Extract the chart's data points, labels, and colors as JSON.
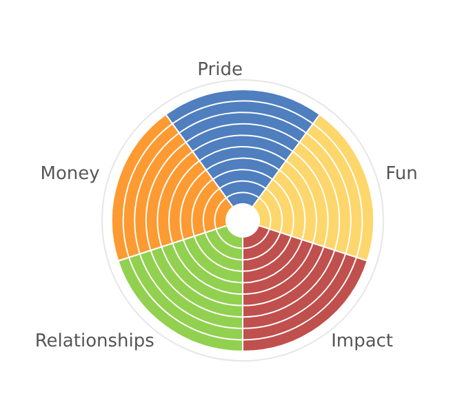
{
  "chart_data": {
    "type": "donut",
    "categories": [
      "Pride",
      "Fun",
      "Impact",
      "Relationships",
      "Money"
    ],
    "values": [
      20,
      20,
      20,
      20,
      20
    ],
    "colors": [
      "#4f7fbf",
      "#fdd66c",
      "#c0504d",
      "#92d050",
      "#fd9a32"
    ],
    "grid": true,
    "legend": false
  }
}
